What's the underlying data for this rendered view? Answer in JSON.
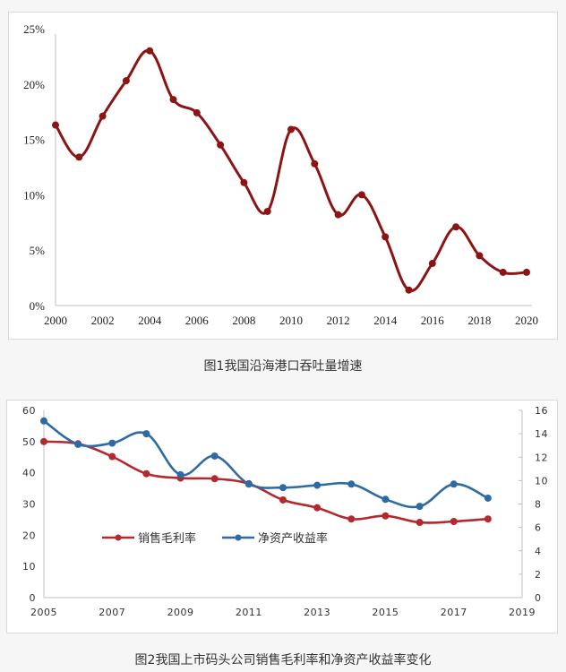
{
  "chart_data": [
    {
      "type": "line",
      "title": "",
      "xlabel": "",
      "ylabel": "",
      "x": [
        2000,
        2001,
        2002,
        2003,
        2004,
        2005,
        2006,
        2007,
        2008,
        2009,
        2010,
        2011,
        2012,
        2013,
        2014,
        2015,
        2016,
        2017,
        2018,
        2019,
        2020
      ],
      "series": [
        {
          "name": "沿海港口吞吐量增速",
          "color": "#8b1414",
          "values": [
            16.3,
            13.4,
            17.1,
            20.3,
            23.0,
            18.6,
            17.4,
            14.5,
            11.1,
            8.5,
            15.9,
            12.8,
            8.2,
            10.0,
            6.2,
            1.4,
            3.8,
            7.1,
            4.5,
            3.0,
            3.0
          ]
        }
      ],
      "ylim": [
        0,
        25
      ],
      "xlim": [
        2000,
        2020
      ],
      "y_ticks": [
        "0%",
        "5%",
        "10%",
        "15%",
        "20%",
        "25%"
      ],
      "x_ticks": [
        "2000",
        "2002",
        "2004",
        "2006",
        "2008",
        "2010",
        "2012",
        "2014",
        "2016",
        "2018",
        "2020"
      ],
      "grid": false,
      "legend": "none"
    },
    {
      "type": "line",
      "title": "",
      "xlabel": "",
      "ylabel": "",
      "x": [
        2005,
        2006,
        2007,
        2008,
        2009,
        2010,
        2011,
        2012,
        2013,
        2014,
        2015,
        2016,
        2017,
        2018
      ],
      "series": [
        {
          "name": "销售毛利率",
          "axis": "left",
          "color": "#b22a2e",
          "values": [
            50.0,
            49.3,
            45.2,
            39.7,
            38.3,
            38.1,
            36.5,
            31.3,
            28.8,
            25.2,
            26.2,
            24.1,
            24.4,
            25.2
          ]
        },
        {
          "name": "净资产收益率",
          "axis": "right",
          "color": "#2e6aa3",
          "values": [
            15.1,
            13.1,
            13.2,
            14.0,
            10.5,
            12.1,
            9.7,
            9.4,
            9.6,
            9.7,
            8.4,
            7.8,
            9.7,
            8.5
          ]
        }
      ],
      "ylim": [
        0,
        60
      ],
      "y2lim": [
        0,
        16
      ],
      "xlim": [
        2005,
        2019
      ],
      "y_ticks": [
        "0",
        "10",
        "20",
        "30",
        "40",
        "50",
        "60"
      ],
      "y2_ticks": [
        "0",
        "2",
        "4",
        "6",
        "8",
        "10",
        "12",
        "14",
        "16"
      ],
      "x_ticks": [
        "2005",
        "2007",
        "2009",
        "2011",
        "2013",
        "2015",
        "2017",
        "2019"
      ],
      "grid": false,
      "legend": "center-left"
    }
  ],
  "captions": {
    "fig1": "图1我国沿海港口吞吐量增速",
    "fig2": "图2我国上市码头公司销售毛利率和净资产收益率变化"
  }
}
